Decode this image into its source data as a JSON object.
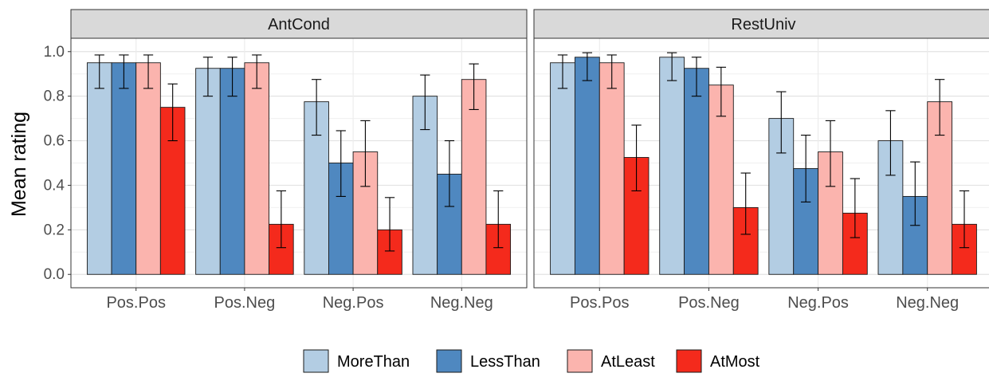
{
  "chart_data": {
    "type": "bar",
    "ylabel": "Mean rating",
    "xlabel": "",
    "ylim": [
      -0.06,
      1.06
    ],
    "yticks": [
      0.0,
      0.2,
      0.4,
      0.6,
      0.8,
      1.0
    ],
    "ytick_labels": [
      "0.0",
      "0.2",
      "0.4",
      "0.6",
      "0.8",
      "1.0"
    ],
    "grid": true,
    "legend_position": "bottom",
    "categories": [
      "Pos.Pos",
      "Pos.Neg",
      "Neg.Pos",
      "Neg.Neg"
    ],
    "series_names": [
      "MoreThan",
      "LessThan",
      "AtLeast",
      "AtMost"
    ],
    "series_colors": [
      "#b3cde3",
      "#4f88c0",
      "#fbb4ae",
      "#f42a1c"
    ],
    "panels": [
      {
        "title": "AntCond",
        "series": [
          {
            "name": "MoreThan",
            "values": [
              0.95,
              0.925,
              0.775,
              0.8
            ],
            "lower": [
              0.835,
              0.8,
              0.625,
              0.65
            ],
            "upper": [
              0.985,
              0.975,
              0.875,
              0.895
            ]
          },
          {
            "name": "LessThan",
            "values": [
              0.95,
              0.925,
              0.5,
              0.45
            ],
            "lower": [
              0.835,
              0.8,
              0.35,
              0.305
            ],
            "upper": [
              0.985,
              0.975,
              0.645,
              0.6
            ]
          },
          {
            "name": "AtLeast",
            "values": [
              0.95,
              0.95,
              0.55,
              0.875
            ],
            "lower": [
              0.835,
              0.835,
              0.395,
              0.74
            ],
            "upper": [
              0.985,
              0.985,
              0.69,
              0.945
            ]
          },
          {
            "name": "AtMost",
            "values": [
              0.75,
              0.225,
              0.2,
              0.225
            ],
            "lower": [
              0.6,
              0.12,
              0.105,
              0.12
            ],
            "upper": [
              0.855,
              0.375,
              0.345,
              0.375
            ]
          }
        ]
      },
      {
        "title": "RestUniv",
        "series": [
          {
            "name": "MoreThan",
            "values": [
              0.95,
              0.975,
              0.7,
              0.6
            ],
            "lower": [
              0.835,
              0.87,
              0.545,
              0.445
            ],
            "upper": [
              0.985,
              0.995,
              0.82,
              0.735
            ]
          },
          {
            "name": "LessThan",
            "values": [
              0.975,
              0.925,
              0.475,
              0.35
            ],
            "lower": [
              0.87,
              0.8,
              0.325,
              0.22
            ],
            "upper": [
              0.995,
              0.975,
              0.625,
              0.505
            ]
          },
          {
            "name": "AtLeast",
            "values": [
              0.95,
              0.85,
              0.55,
              0.775
            ],
            "lower": [
              0.835,
              0.71,
              0.395,
              0.625
            ],
            "upper": [
              0.985,
              0.93,
              0.69,
              0.875
            ]
          },
          {
            "name": "AtMost",
            "values": [
              0.525,
              0.3,
              0.275,
              0.225
            ],
            "lower": [
              0.375,
              0.18,
              0.165,
              0.12
            ],
            "upper": [
              0.67,
              0.455,
              0.43,
              0.375
            ]
          }
        ]
      }
    ]
  }
}
